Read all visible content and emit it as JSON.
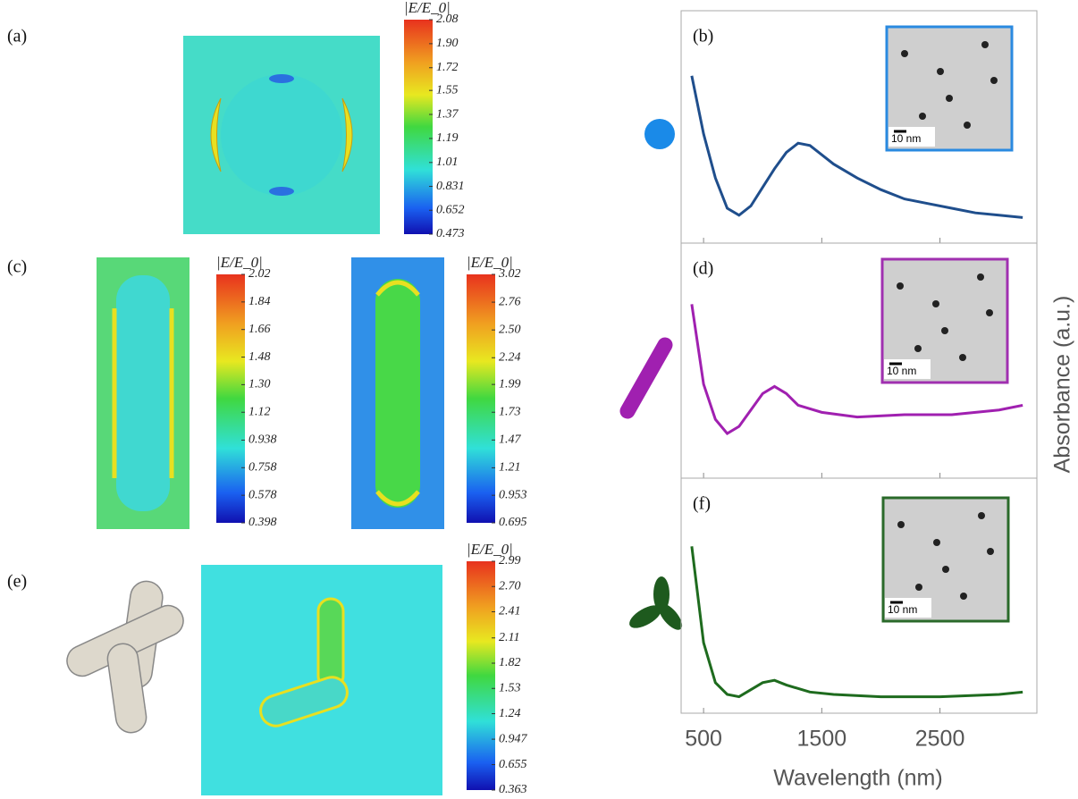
{
  "figure": {
    "panels": [
      {
        "label": "(a)"
      },
      {
        "label": "(c)"
      },
      {
        "label": "(e)"
      }
    ],
    "colorbars": [
      {
        "title": "|E/E_0|",
        "lim": [
          0.473,
          2.08
        ],
        "ticks": [
          2.08,
          {
            "value": 1.9,
            "label": "1.90"
          },
          1.72,
          1.55,
          1.37,
          1.19,
          1.01,
          0.831,
          0.652,
          0.473
        ]
      },
      {
        "title": "|E/E_0|",
        "lim": [
          0.398,
          2.02
        ],
        "ticks": [
          2.02,
          1.84,
          1.66,
          1.48,
          {
            "value": 1.3,
            "label": "1.30"
          },
          1.12,
          0.938,
          0.758,
          0.578,
          0.398
        ]
      },
      {
        "title": "|E/E_0|",
        "lim": [
          0.695,
          3.02
        ],
        "ticks": [
          3.02,
          2.76,
          {
            "value": 2.5,
            "label": "2.50"
          },
          2.24,
          1.99,
          1.73,
          1.47,
          1.21,
          0.953,
          0.695
        ]
      },
      {
        "title": "|E/E_0|",
        "lim": [
          0.363,
          2.99
        ],
        "ticks": [
          2.99,
          {
            "value": 2.7,
            "label": "2.70"
          },
          2.41,
          2.11,
          1.82,
          1.53,
          1.24,
          0.947,
          0.655,
          0.363
        ]
      }
    ],
    "x_label": "Wavelength (nm)",
    "y_label": "Absorbance (a.u.)"
  },
  "chart_data": [
    {
      "type": "line",
      "panel_label": "(b)",
      "inset_scale_label": "10 nm",
      "color": "#1f4e8c",
      "x": [
        400,
        500,
        600,
        700,
        800,
        900,
        1000,
        1100,
        1200,
        1300,
        1400,
        1500,
        1600,
        1800,
        2000,
        2200,
        2400,
        2600,
        2800,
        3000,
        3200
      ],
      "values": [
        0.72,
        0.47,
        0.28,
        0.15,
        0.12,
        0.16,
        0.24,
        0.32,
        0.39,
        0.43,
        0.42,
        0.38,
        0.34,
        0.28,
        0.23,
        0.19,
        0.17,
        0.15,
        0.13,
        0.12,
        0.11
      ],
      "xlim": [
        310,
        3320
      ],
      "ylim": [
        0,
        1
      ],
      "xticks": [
        500,
        1500,
        2500
      ]
    },
    {
      "type": "line",
      "panel_label": "(d)",
      "inset_scale_label": "10 nm",
      "color": "#a020b0",
      "x": [
        400,
        500,
        600,
        700,
        800,
        900,
        1000,
        1100,
        1200,
        1300,
        1500,
        1800,
        2200,
        2600,
        3000,
        3200
      ],
      "values": [
        0.74,
        0.4,
        0.25,
        0.19,
        0.22,
        0.29,
        0.36,
        0.39,
        0.36,
        0.31,
        0.28,
        0.26,
        0.27,
        0.27,
        0.29,
        0.31
      ],
      "xlim": [
        310,
        3320
      ],
      "ylim": [
        0,
        1
      ],
      "xticks": [
        500,
        1500,
        2500
      ]
    },
    {
      "type": "line",
      "panel_label": "(f)",
      "inset_scale_label": "10 nm",
      "color": "#1e6b1e",
      "x": [
        400,
        500,
        600,
        700,
        800,
        900,
        1000,
        1100,
        1200,
        1400,
        1600,
        2000,
        2500,
        3000,
        3200
      ],
      "values": [
        0.71,
        0.3,
        0.13,
        0.08,
        0.07,
        0.1,
        0.13,
        0.14,
        0.12,
        0.09,
        0.08,
        0.07,
        0.07,
        0.08,
        0.09
      ],
      "xlim": [
        310,
        3320
      ],
      "ylim": [
        0,
        1
      ],
      "xticks": [
        500,
        1500,
        2500
      ]
    }
  ]
}
